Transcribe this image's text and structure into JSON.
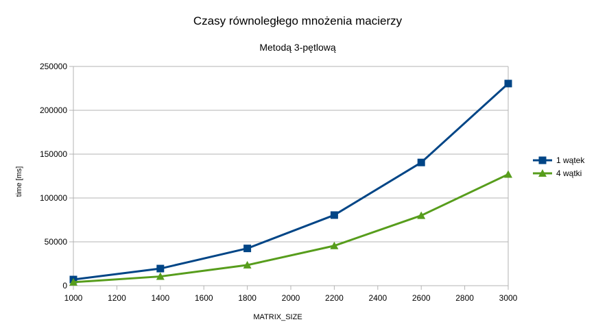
{
  "chart_data": {
    "type": "line",
    "title": "Czasy równoległego mnożenia macierzy",
    "subtitle": "Metodą 3-pętlową",
    "xlabel": "MATRIX_SIZE",
    "ylabel": "time [ms]",
    "xlim": [
      1000,
      3000
    ],
    "ylim": [
      0,
      250000
    ],
    "xticks": [
      1000,
      1200,
      1400,
      1600,
      1800,
      2000,
      2200,
      2400,
      2600,
      2800,
      3000
    ],
    "yticks": [
      0,
      50000,
      100000,
      150000,
      200000,
      250000
    ],
    "grid": "horizontal",
    "legend_position": "right",
    "x": [
      1000,
      1400,
      1800,
      2200,
      2600,
      3000
    ],
    "series": [
      {
        "name": "1 wątek",
        "color": "#004586",
        "marker": "square",
        "values": [
          7000,
          19500,
          42500,
          80500,
          140500,
          230500
        ]
      },
      {
        "name": "4 wątki",
        "color": "#579d1c",
        "marker": "triangle",
        "values": [
          4000,
          10500,
          23500,
          45500,
          80000,
          127000
        ]
      }
    ]
  }
}
